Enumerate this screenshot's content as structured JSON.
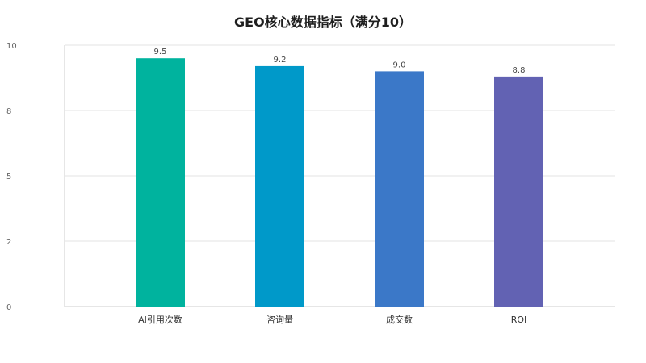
{
  "chart_data": {
    "type": "bar",
    "title": "GEO核心数据指标（满分10）",
    "categories": [
      "AI引用次数",
      "咨询量",
      "成交数",
      "ROI"
    ],
    "values": [
      9.5,
      9.2,
      9.0,
      8.8
    ],
    "data_labels": [
      "9.5",
      "9.2",
      "9.0",
      "8.8"
    ],
    "bar_colors": [
      "#00b39e",
      "#0099c9",
      "#3b78c8",
      "#6262b3"
    ],
    "y_ticks": [
      "0",
      "2",
      "5",
      "8",
      "10"
    ],
    "y_tick_values": [
      0,
      2.5,
      5,
      7.5,
      10
    ],
    "ylim": [
      0,
      10
    ],
    "xlabel": "",
    "ylabel": "",
    "grid": true,
    "legend": "none"
  }
}
